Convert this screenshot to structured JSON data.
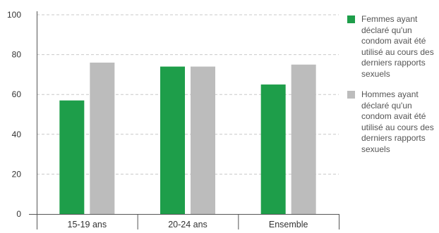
{
  "colors": {
    "women": "#1e9e4a",
    "men": "#bcbcbc",
    "grid": "#c9c9c9",
    "axis": "#555555"
  },
  "legend": {
    "women": "Femmes ayant déclaré qu'un condom avait été utilisé au cours des derniers rapports sexuels",
    "men": "Hommes ayant déclaré qu'un condom avait été utilisé au cours des derniers rapports sexuels"
  },
  "chart_data": {
    "type": "bar",
    "categories": [
      "15-19 ans",
      "20-24 ans",
      "Ensemble"
    ],
    "series": [
      {
        "name": "Femmes ayant déclaré qu'un condom avait été utilisé au cours des derniers rapports sexuels",
        "values": [
          57,
          74,
          65
        ]
      },
      {
        "name": "Hommes ayant déclaré qu'un condom avait été utilisé au cours des derniers rapports sexuels",
        "values": [
          76,
          74,
          75
        ]
      }
    ],
    "yticks": [
      0,
      20,
      40,
      60,
      80,
      100
    ],
    "ylim": [
      0,
      100
    ],
    "grid": true,
    "legend_position": "right"
  }
}
